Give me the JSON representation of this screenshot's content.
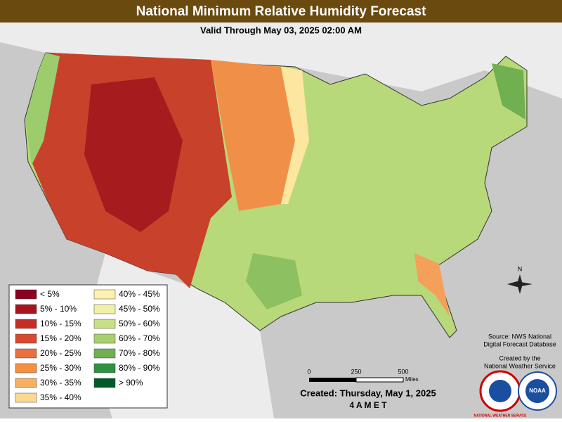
{
  "header": {
    "title": "National Minimum Relative Humidity Forecast",
    "subtitle": "Valid Through May 03, 2025 02:00 AM"
  },
  "legend": {
    "items": [
      {
        "label": "< 5%",
        "color": "#8b0020"
      },
      {
        "label": "5% - 10%",
        "color": "#a8141e"
      },
      {
        "label": "10% - 15%",
        "color": "#c42e24"
      },
      {
        "label": "15% - 20%",
        "color": "#d84a30"
      },
      {
        "label": "20% - 25%",
        "color": "#e8703c"
      },
      {
        "label": "25% - 30%",
        "color": "#f59040"
      },
      {
        "label": "30% - 35%",
        "color": "#f8b060"
      },
      {
        "label": "35% - 40%",
        "color": "#fdd890"
      },
      {
        "label": "40% - 45%",
        "color": "#fff0b0"
      },
      {
        "label": "45% - 50%",
        "color": "#f0f0a8"
      },
      {
        "label": "50% - 60%",
        "color": "#c8e084"
      },
      {
        "label": "60% - 70%",
        "color": "#a8d070"
      },
      {
        "label": "70% - 80%",
        "color": "#70b050"
      },
      {
        "label": "80% - 90%",
        "color": "#309040"
      },
      {
        "label": "> 90%",
        "color": "#005a28"
      }
    ]
  },
  "scale": {
    "labels": [
      "0",
      "250",
      "500"
    ],
    "unit": "Miles"
  },
  "compass": "N",
  "source": [
    "Source: NWS National",
    "Digital Forecast Database"
  ],
  "credit": [
    "Created by the",
    "National Weather Service"
  ],
  "created": [
    "Created: Thursday, May 1, 2025",
    "4 A M E T"
  ],
  "logos": [
    "NATIONAL WEATHER SERVICE",
    "NOAA"
  ]
}
